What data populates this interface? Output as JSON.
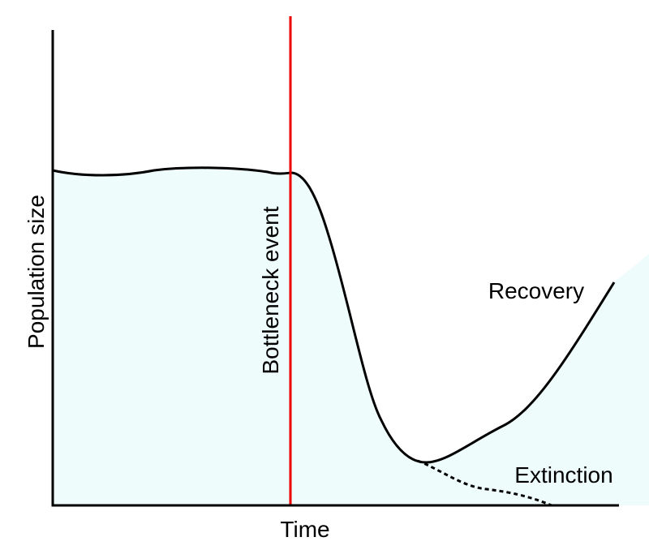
{
  "axes": {
    "y_label": "Population size",
    "x_label": "Time"
  },
  "annotations": {
    "event": "Bottleneck event",
    "recovery": "Recovery",
    "extinction": "Extinction"
  }
}
